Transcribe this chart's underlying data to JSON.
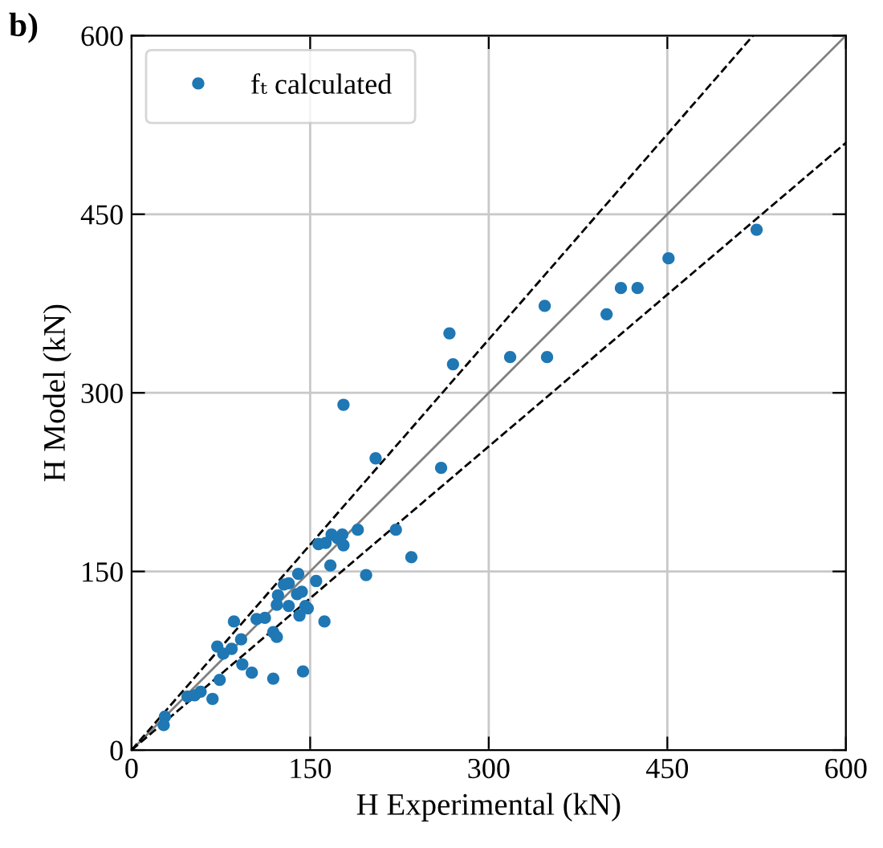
{
  "chart_data": {
    "type": "scatter",
    "xlabel": "H Experimental (kN)",
    "ylabel": "H Model (kN)",
    "annotations": [
      "b)"
    ],
    "xlim": [
      0,
      600
    ],
    "ylim": [
      0,
      600
    ],
    "xticks": [
      0,
      150,
      300,
      450,
      600
    ],
    "yticks": [
      0,
      150,
      300,
      450,
      600
    ],
    "grid": true,
    "legend": "top left",
    "series": [
      {
        "name": "fₜ calculated",
        "marker": "circle",
        "color": "#1f77b4",
        "x": [
          525,
          451,
          411,
          425,
          399,
          347,
          318,
          349,
          267,
          270,
          178,
          205,
          260,
          222,
          235,
          190,
          168,
          177,
          173,
          157,
          163,
          178,
          167,
          140,
          155,
          197,
          128,
          132,
          123,
          139,
          143,
          122,
          132,
          146,
          148,
          141,
          162,
          86,
          105,
          112,
          119,
          122,
          72,
          77,
          84,
          92,
          93,
          101,
          119,
          144,
          74,
          47,
          53,
          58,
          68,
          28,
          27
        ],
        "values": [
          437,
          413,
          388,
          388,
          366,
          373,
          330,
          330,
          350,
          324,
          290,
          245,
          237,
          185,
          162,
          185,
          181,
          181,
          178,
          173,
          174,
          172,
          155,
          148,
          142,
          147,
          139,
          140,
          130,
          131,
          133,
          122,
          121,
          121,
          119,
          113,
          108,
          108,
          110,
          111,
          99,
          95,
          87,
          81,
          85,
          93,
          72,
          65,
          60,
          66,
          59,
          45,
          46,
          49,
          43,
          28,
          21
        ]
      },
      {
        "type": "line",
        "color": "#808080",
        "line_style": "solid",
        "x": [
          0,
          600
        ],
        "values": [
          0,
          600
        ]
      },
      {
        "type": "line",
        "color": "#000000",
        "line_style": "dashed",
        "x": [
          0,
          522
        ],
        "values": [
          0,
          600
        ]
      },
      {
        "type": "line",
        "color": "#000000",
        "line_style": "dashed",
        "x": [
          0,
          600
        ],
        "values": [
          0,
          510
        ]
      }
    ]
  }
}
